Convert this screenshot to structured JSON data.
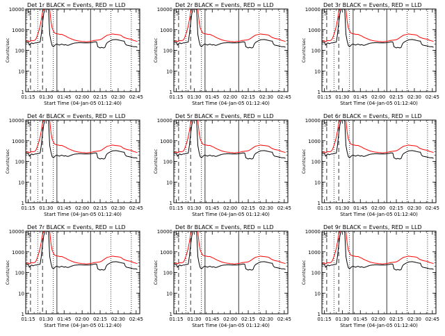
{
  "chart_data": {
    "type": "line",
    "ylabel": "Counts/sec",
    "xlabel": "Start Time (04-Jan-05 01:12:40)",
    "yscale": "log",
    "ylim": [
      1,
      10000
    ],
    "y_ticks": [
      1,
      10,
      100,
      1000,
      10000
    ],
    "y_tick_labels": [
      "1",
      "10",
      "100",
      "1000",
      "10000"
    ],
    "x_ticks": [
      "01:15",
      "01:30",
      "01:45",
      "02:00",
      "02:15",
      "02:30",
      "02:45"
    ],
    "x_minutes_range": [
      73,
      168
    ],
    "corner_label": "S",
    "grid": false,
    "legend": "none",
    "colors": {
      "events": "#000000",
      "lld": "#ff0000",
      "axes": "#000000"
    },
    "series_keys": [
      "Events",
      "LLD"
    ],
    "panels": [
      {
        "title": "Det 1r BLACK = Events, RED = LLD"
      },
      {
        "title": "Det 2r BLACK = Events, RED = LLD"
      },
      {
        "title": "Det 3r BLACK = Events, RED = LLD"
      },
      {
        "title": "Det 4r BLACK = Events, RED = LLD"
      },
      {
        "title": "Det 5r BLACK = Events, RED = LLD"
      },
      {
        "title": "Det 6r BLACK = Events, RED = LLD"
      },
      {
        "title": "Det 7r BLACK = Events, RED = LLD"
      },
      {
        "title": "Det 8r BLACK = Events, RED = LLD"
      },
      {
        "title": "Det 9r BLACK = Events, RED = LLD"
      }
    ],
    "vertical_markers": [
      {
        "minute": 77,
        "style": "dashed"
      },
      {
        "minute": 87,
        "style": "dashed"
      },
      {
        "minute": 83,
        "style": "dotted"
      },
      {
        "minute": 96,
        "style": "dotted"
      },
      {
        "minute": 144,
        "style": "dotted"
      },
      {
        "minute": 161,
        "style": "dotted"
      },
      {
        "minute": 99,
        "style": "solid"
      },
      {
        "minute": 127,
        "style": "solid"
      }
    ],
    "series_events": [
      [
        73,
        240
      ],
      [
        74,
        245
      ],
      [
        75,
        250
      ],
      [
        76,
        180
      ],
      [
        77,
        210
      ],
      [
        78,
        230
      ],
      [
        79,
        210
      ],
      [
        80,
        220
      ],
      [
        81,
        230
      ],
      [
        82,
        230
      ],
      [
        83,
        240
      ],
      [
        84,
        245
      ],
      [
        85,
        250
      ],
      [
        86,
        600
      ],
      [
        87,
        2200
      ],
      [
        88,
        6000
      ],
      [
        89,
        10000
      ],
      [
        90,
        10000
      ],
      [
        91,
        10000
      ],
      [
        92,
        9000
      ],
      [
        93,
        600
      ],
      [
        94,
        280
      ],
      [
        95,
        170
      ],
      [
        96,
        150
      ],
      [
        97,
        170
      ],
      [
        98,
        195
      ],
      [
        99,
        200
      ],
      [
        100,
        190
      ],
      [
        101,
        180
      ],
      [
        102,
        190
      ],
      [
        103,
        200
      ],
      [
        104,
        190
      ],
      [
        105,
        180
      ],
      [
        106,
        190
      ],
      [
        107,
        180
      ],
      [
        108,
        175
      ],
      [
        109,
        180
      ],
      [
        110,
        190
      ],
      [
        111,
        200
      ],
      [
        112,
        210
      ],
      [
        113,
        220
      ],
      [
        114,
        225
      ],
      [
        115,
        230
      ],
      [
        116,
        230
      ],
      [
        117,
        235
      ],
      [
        118,
        235
      ],
      [
        119,
        235
      ],
      [
        120,
        232
      ],
      [
        121,
        230
      ],
      [
        122,
        232
      ],
      [
        123,
        230
      ],
      [
        124,
        232
      ],
      [
        125,
        230
      ],
      [
        126,
        232
      ],
      [
        127,
        235
      ],
      [
        128,
        240
      ],
      [
        129,
        245
      ],
      [
        130,
        255
      ],
      [
        131,
        260
      ],
      [
        132,
        255
      ],
      [
        133,
        150
      ],
      [
        134,
        140
      ],
      [
        135,
        130
      ],
      [
        136,
        140
      ],
      [
        137,
        135
      ],
      [
        138,
        130
      ],
      [
        139,
        140
      ],
      [
        140,
        200
      ],
      [
        141,
        240
      ],
      [
        142,
        260
      ],
      [
        143,
        280
      ],
      [
        144,
        300
      ],
      [
        145,
        320
      ],
      [
        146,
        330
      ],
      [
        147,
        330
      ],
      [
        148,
        335
      ],
      [
        149,
        330
      ],
      [
        150,
        320
      ],
      [
        151,
        310
      ],
      [
        152,
        300
      ],
      [
        153,
        290
      ],
      [
        154,
        285
      ],
      [
        155,
        280
      ],
      [
        156,
        200
      ],
      [
        157,
        180
      ],
      [
        158,
        175
      ],
      [
        159,
        170
      ],
      [
        160,
        165
      ],
      [
        161,
        160
      ],
      [
        162,
        155
      ],
      [
        163,
        150
      ],
      [
        164,
        150
      ],
      [
        165,
        150
      ],
      [
        166,
        140
      ]
    ],
    "series_lld": [
      [
        73,
        270
      ],
      [
        74,
        280
      ],
      [
        75,
        290
      ],
      [
        76,
        260
      ],
      [
        77,
        280
      ],
      [
        78,
        300
      ],
      [
        79,
        290
      ],
      [
        80,
        300
      ],
      [
        81,
        320
      ],
      [
        82,
        400
      ],
      [
        83,
        600
      ],
      [
        84,
        900
      ],
      [
        85,
        1500
      ],
      [
        86,
        3000
      ],
      [
        87,
        7000
      ],
      [
        88,
        10000
      ],
      [
        89,
        10000
      ],
      [
        90,
        10000
      ],
      [
        91,
        10000
      ],
      [
        92,
        10000
      ],
      [
        93,
        10000
      ],
      [
        94,
        2500
      ],
      [
        95,
        1200
      ],
      [
        96,
        900
      ],
      [
        97,
        700
      ],
      [
        98,
        650
      ],
      [
        99,
        630
      ],
      [
        100,
        620
      ],
      [
        101,
        600
      ],
      [
        102,
        590
      ],
      [
        103,
        600
      ],
      [
        104,
        560
      ],
      [
        105,
        520
      ],
      [
        106,
        500
      ],
      [
        107,
        460
      ],
      [
        108,
        430
      ],
      [
        109,
        400
      ],
      [
        110,
        380
      ],
      [
        111,
        360
      ],
      [
        112,
        340
      ],
      [
        113,
        320
      ],
      [
        114,
        310
      ],
      [
        115,
        300
      ],
      [
        116,
        290
      ],
      [
        117,
        285
      ],
      [
        118,
        280
      ],
      [
        119,
        275
      ],
      [
        120,
        270
      ],
      [
        121,
        265
      ],
      [
        122,
        265
      ],
      [
        123,
        260
      ],
      [
        124,
        262
      ],
      [
        125,
        265
      ],
      [
        126,
        270
      ],
      [
        127,
        275
      ],
      [
        128,
        280
      ],
      [
        129,
        290
      ],
      [
        130,
        300
      ],
      [
        131,
        305
      ],
      [
        132,
        310
      ],
      [
        133,
        315
      ],
      [
        134,
        320
      ],
      [
        135,
        330
      ],
      [
        136,
        350
      ],
      [
        137,
        380
      ],
      [
        138,
        420
      ],
      [
        139,
        460
      ],
      [
        140,
        500
      ],
      [
        141,
        540
      ],
      [
        142,
        560
      ],
      [
        143,
        580
      ],
      [
        144,
        600
      ],
      [
        145,
        620
      ],
      [
        146,
        610
      ],
      [
        147,
        600
      ],
      [
        148,
        590
      ],
      [
        149,
        580
      ],
      [
        150,
        570
      ],
      [
        151,
        560
      ],
      [
        152,
        540
      ],
      [
        153,
        500
      ],
      [
        154,
        450
      ],
      [
        155,
        420
      ],
      [
        156,
        400
      ],
      [
        157,
        380
      ],
      [
        158,
        370
      ],
      [
        159,
        360
      ],
      [
        160,
        350
      ],
      [
        161,
        340
      ],
      [
        162,
        320
      ],
      [
        163,
        300
      ],
      [
        164,
        290
      ],
      [
        165,
        280
      ],
      [
        166,
        270
      ]
    ]
  }
}
